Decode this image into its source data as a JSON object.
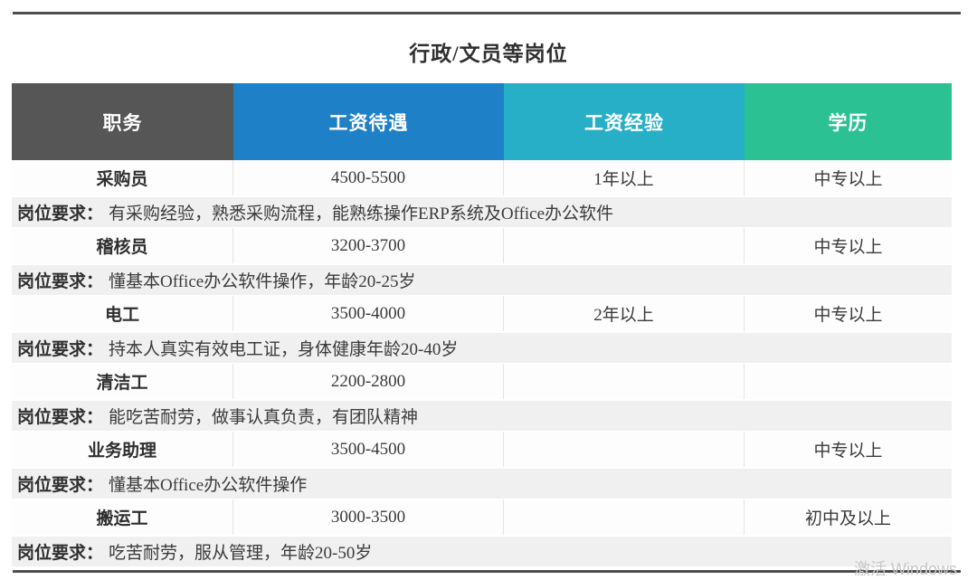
{
  "page": {
    "title": "行政/文员等岗位",
    "watermark": "激活 Windows"
  },
  "table": {
    "headers": [
      {
        "label": "职务",
        "color": "#565656"
      },
      {
        "label": "工资待遇",
        "color": "#1e80c6"
      },
      {
        "label": "工资经验",
        "color": "#27afc8"
      },
      {
        "label": "学历",
        "color": "#2bc193"
      }
    ],
    "requirement_label": "岗位要求：",
    "jobs": [
      {
        "position": "采购员",
        "salary": "4500-5500",
        "experience": "1年以上",
        "education": "中专以上",
        "requirement": "有采购经验，熟悉采购流程，能熟练操作ERP系统及Office办公软件"
      },
      {
        "position": "稽核员",
        "salary": "3200-3700",
        "experience": "",
        "education": "中专以上",
        "requirement": "懂基本Office办公软件操作，年龄20-25岁"
      },
      {
        "position": "电工",
        "salary": "3500-4000",
        "experience": "2年以上",
        "education": "中专以上",
        "requirement": "持本人真实有效电工证，身体健康年龄20-40岁"
      },
      {
        "position": "清洁工",
        "salary": "2200-2800",
        "experience": "",
        "education": "",
        "requirement": "能吃苦耐劳，做事认真负责，有团队精神"
      },
      {
        "position": "业务助理",
        "salary": "3500-4500",
        "experience": "",
        "education": "中专以上",
        "requirement": "懂基本Office办公软件操作"
      },
      {
        "position": "搬运工",
        "salary": "3000-3500",
        "experience": "",
        "education": "初中及以上",
        "requirement": "吃苦耐劳，服从管理，年龄20-50岁"
      }
    ]
  }
}
